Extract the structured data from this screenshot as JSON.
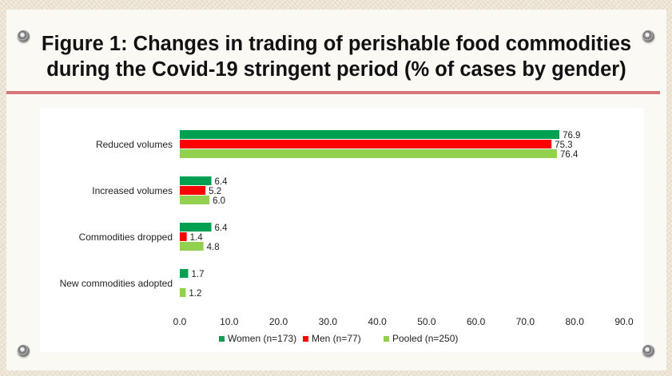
{
  "title_line1": "Figure 1: Changes in trading of perishable food commodities",
  "title_line2": "during the Covid-19 stringent period  (% of cases by gender)",
  "chart_data": {
    "type": "bar",
    "orientation": "horizontal",
    "categories": [
      "Reduced volumes",
      "Increased volumes",
      "Commodities dropped",
      "New commodities adopted"
    ],
    "series": [
      {
        "name": "Women (n=173)",
        "color": "#00a050",
        "values": [
          76.9,
          6.4,
          6.4,
          1.7
        ],
        "labels": [
          "76.9",
          "6.4",
          "6.4",
          "1.7"
        ]
      },
      {
        "name": "Men (n=77)",
        "color": "#ff0000",
        "values": [
          75.3,
          5.2,
          1.4,
          null
        ],
        "labels": [
          "75.3",
          "5.2",
          "1.4",
          null
        ]
      },
      {
        "name": "Pooled (n=250)",
        "color": "#92d050",
        "values": [
          76.4,
          6.0,
          4.8,
          1.2
        ],
        "labels": [
          "76.4",
          "6.0",
          "4.8",
          "1.2"
        ]
      }
    ],
    "xlim": [
      0,
      90
    ],
    "xticks": [
      "0.0",
      "10.0",
      "20.0",
      "30.0",
      "40.0",
      "50.0",
      "60.0",
      "70.0",
      "80.0",
      "90.0"
    ],
    "grid": false,
    "legend_position": "bottom"
  }
}
